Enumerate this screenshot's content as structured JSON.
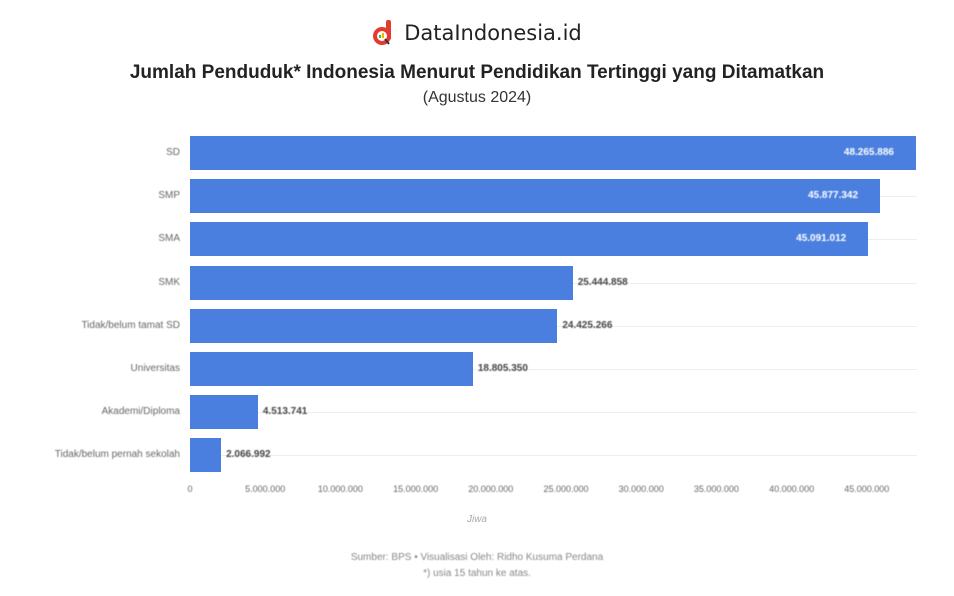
{
  "brand": {
    "name": "DataIndonesia.id",
    "color": "#e23c2f"
  },
  "header": {
    "title": "Jumlah Penduduk* Indonesia Menurut Pendidikan Tertinggi yang Ditamatkan",
    "subtitle": "(Agustus 2024)"
  },
  "footer": {
    "source": "Sumber: BPS • Visualisasi Oleh: Ridho Kusuma Perdana",
    "note": "*) usia 15 tahun ke atas."
  },
  "chart_data": {
    "type": "bar",
    "orientation": "horizontal",
    "title": "Jumlah Penduduk* Indonesia Menurut Pendidikan Tertinggi yang Ditamatkan",
    "subtitle": "(Agustus 2024)",
    "xlabel": "Jiwa",
    "ylabel": "",
    "categories": [
      "SD",
      "SMP",
      "SMA",
      "SMK",
      "Tidak/belum tamat SD",
      "Universitas",
      "Akademi/Diploma",
      "Tidak/belum pernah sekolah"
    ],
    "values": [
      48265886,
      45877342,
      45091012,
      25444858,
      24425266,
      18805350,
      4513741,
      2066992
    ],
    "value_labels": [
      "48.265.886",
      "45.877.342",
      "45.091.012",
      "25.444.858",
      "24.425.266",
      "18.805.350",
      "4.513.741",
      "2.066.992"
    ],
    "xlim": [
      0,
      48000000
    ],
    "x_ticks": [
      "0",
      "5.000.000",
      "10.000.000",
      "15.000.000",
      "20.000.000",
      "25.000.000",
      "30.000.000",
      "35.000.000",
      "40.000.000",
      "45.000.000"
    ],
    "bar_color": "#4a7fdf",
    "grid": true,
    "legend": null
  }
}
